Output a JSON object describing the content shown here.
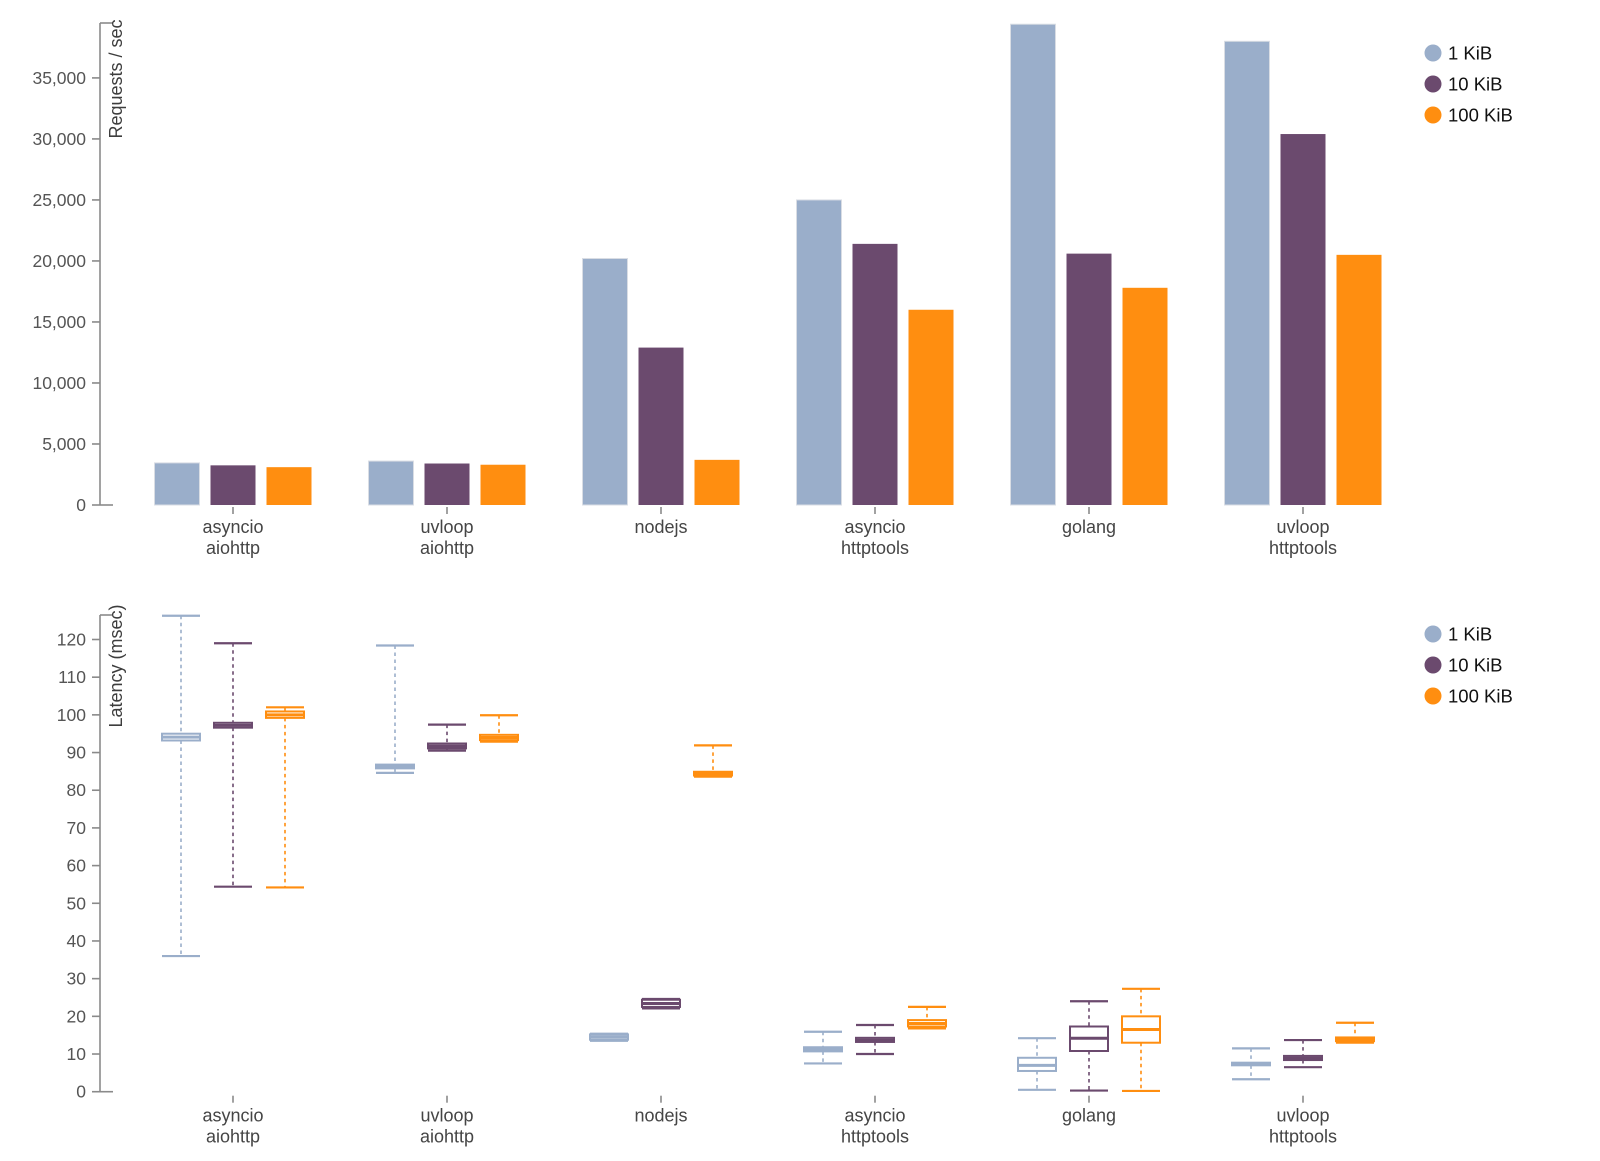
{
  "page": {
    "background": "#ffffff"
  },
  "colors": {
    "axis": "#8a8a8a",
    "tick_label": "#555555",
    "group_label": "#454545",
    "legend_text": "#111111",
    "box_fill": "#ffffff"
  },
  "legend": {
    "items": [
      {
        "label": "1 KiB",
        "color": "#9aaeca",
        "swatch": "circle"
      },
      {
        "label": "10 KiB",
        "color": "#6b4a6e",
        "swatch": "circle"
      },
      {
        "label": "100 KiB",
        "color": "#ff8e10",
        "swatch": "circle"
      }
    ]
  },
  "chart_data": [
    {
      "type": "bar",
      "title": "",
      "xlabel": "",
      "ylabel": "Requests / sec",
      "ylim": [
        0,
        39500
      ],
      "yticks": [
        0,
        5000,
        10000,
        15000,
        20000,
        25000,
        30000,
        35000
      ],
      "grid": false,
      "legend_position": "top-right",
      "categories": [
        "asyncio\naiohttp",
        "uvloop\naiohttp",
        "nodejs",
        "asyncio\nhttptools",
        "golang",
        "uvloop\nhttptools"
      ],
      "series": [
        {
          "name": "1 KiB",
          "color": "#9aaeca",
          "values": [
            3450,
            3600,
            20200,
            25000,
            39400,
            38000
          ]
        },
        {
          "name": "10 KiB",
          "color": "#6b4a6e",
          "values": [
            3250,
            3400,
            12900,
            21400,
            20600,
            30400
          ]
        },
        {
          "name": "100 KiB",
          "color": "#ff8e10",
          "values": [
            3100,
            3300,
            3700,
            16000,
            17800,
            20500
          ]
        }
      ]
    },
    {
      "type": "boxplot",
      "title": "",
      "xlabel": "",
      "ylabel": "Latency (msec)",
      "ylim": [
        0,
        126.5
      ],
      "yticks": [
        0,
        10,
        20,
        30,
        40,
        50,
        60,
        70,
        80,
        90,
        100,
        110,
        120
      ],
      "grid": false,
      "legend_position": "top-right",
      "categories": [
        "asyncio\naiohttp",
        "uvloop\naiohttp",
        "nodejs",
        "asyncio\nhttptools",
        "golang",
        "uvloop\nhttptools"
      ],
      "series": [
        {
          "name": "1 KiB",
          "color": "#9aaeca",
          "boxes": [
            {
              "low": 36.0,
              "q1": 93.2,
              "median": 94.1,
              "q3": 95.0,
              "high": 126.3
            },
            {
              "low": 84.6,
              "q1": 85.8,
              "median": 86.3,
              "q3": 86.8,
              "high": 118.4
            },
            {
              "low": 13.5,
              "q1": 13.8,
              "median": 14.5,
              "q3": 15.2,
              "high": 15.4
            },
            {
              "low": 7.5,
              "q1": 10.7,
              "median": 11.2,
              "q3": 11.8,
              "high": 15.9
            },
            {
              "low": 0.5,
              "q1": 5.5,
              "median": 7.0,
              "q3": 9.0,
              "high": 14.2
            },
            {
              "low": 3.3,
              "q1": 7.0,
              "median": 7.3,
              "q3": 7.7,
              "high": 11.5
            }
          ]
        },
        {
          "name": "10 KiB",
          "color": "#6b4a6e",
          "boxes": [
            {
              "low": 54.4,
              "q1": 96.6,
              "median": 97.2,
              "q3": 97.9,
              "high": 119.0
            },
            {
              "low": 90.5,
              "q1": 91.1,
              "median": 91.7,
              "q3": 92.4,
              "high": 97.4
            },
            {
              "low": 22.1,
              "q1": 22.5,
              "median": 23.4,
              "q3": 24.4,
              "high": 24.6
            },
            {
              "low": 10.0,
              "q1": 13.2,
              "median": 13.7,
              "q3": 14.3,
              "high": 17.7
            },
            {
              "low": 0.3,
              "q1": 10.8,
              "median": 14.2,
              "q3": 17.3,
              "high": 24.0
            },
            {
              "low": 6.5,
              "q1": 8.4,
              "median": 8.9,
              "q3": 9.5,
              "high": 13.7
            }
          ]
        },
        {
          "name": "100 KiB",
          "color": "#ff8e10",
          "boxes": [
            {
              "low": 54.2,
              "q1": 99.2,
              "median": 100.0,
              "q3": 100.9,
              "high": 102.0
            },
            {
              "low": 92.9,
              "q1": 93.3,
              "median": 94.0,
              "q3": 94.7,
              "high": 99.9
            },
            {
              "low": 83.6,
              "q1": 83.9,
              "median": 84.3,
              "q3": 84.9,
              "high": 91.9
            },
            {
              "low": 16.8,
              "q1": 17.3,
              "median": 18.1,
              "q3": 19.0,
              "high": 22.5
            },
            {
              "low": 0.2,
              "q1": 13.0,
              "median": 16.5,
              "q3": 20.0,
              "high": 27.3
            },
            {
              "low": 13.0,
              "q1": 13.4,
              "median": 13.9,
              "q3": 14.4,
              "high": 18.3
            }
          ]
        }
      ]
    }
  ]
}
